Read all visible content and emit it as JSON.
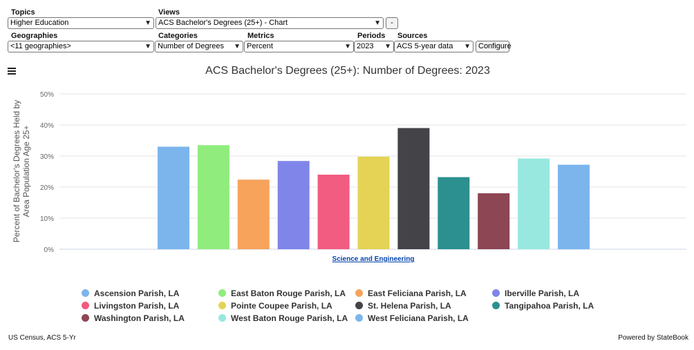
{
  "controls": {
    "topics": {
      "label": "Topics",
      "value": "Higher Education"
    },
    "views": {
      "label": "Views",
      "value": "ACS Bachelor's Degrees (25+) - Chart"
    },
    "minus_button": "-",
    "geographies": {
      "label": "Geographies",
      "value": "<11 geographies>"
    },
    "categories": {
      "label": "Categories",
      "value": "Number of Degrees"
    },
    "metrics": {
      "label": "Metrics",
      "value": "Percent"
    },
    "periods": {
      "label": "Periods",
      "value": "2023"
    },
    "sources": {
      "label": "Sources",
      "value": "ACS 5-year data"
    },
    "configure_button": "Configure"
  },
  "chart_data": {
    "type": "bar",
    "title": "ACS Bachelor's Degrees (25+): Number of Degrees: 2023",
    "ylabel": "Percent of Bachelor's Degrees Held by Area Population Age 25+",
    "ylabel_lines": [
      "Percent of Bachelor's Degrees Held by",
      "Area Population Age 25+"
    ],
    "xlabel": "",
    "categories": [
      "Science and Engineering"
    ],
    "ylim": [
      0,
      50
    ],
    "yticks": [
      0,
      10,
      20,
      30,
      40,
      50
    ],
    "ytick_labels": [
      "0%",
      "10%",
      "20%",
      "30%",
      "40%",
      "50%"
    ],
    "grid": true,
    "legend": "bottom",
    "series": [
      {
        "name": "Ascension Parish, LA",
        "values": [
          33.0
        ],
        "color": "#7cb5ec"
      },
      {
        "name": "East Baton Rouge Parish, LA",
        "values": [
          33.5
        ],
        "color": "#90ed7d"
      },
      {
        "name": "East Feliciana Parish, LA",
        "values": [
          22.4
        ],
        "color": "#f7a35c"
      },
      {
        "name": "Iberville Parish, LA",
        "values": [
          28.4
        ],
        "color": "#8085e9"
      },
      {
        "name": "Livingston Parish, LA",
        "values": [
          24.0
        ],
        "color": "#f15c80"
      },
      {
        "name": "Pointe Coupee Parish, LA",
        "values": [
          29.8
        ],
        "color": "#e4d354"
      },
      {
        "name": "St. Helena Parish, LA",
        "values": [
          39.0
        ],
        "color": "#434348"
      },
      {
        "name": "Tangipahoa Parish, LA",
        "values": [
          23.2
        ],
        "color": "#2b908f"
      },
      {
        "name": "Washington Parish, LA",
        "values": [
          18.0
        ],
        "color": "#8d4654"
      },
      {
        "name": "West Baton Rouge Parish, LA",
        "values": [
          29.2
        ],
        "color": "#98e8e0"
      },
      {
        "name": "West Feliciana Parish, LA",
        "values": [
          27.2
        ],
        "color": "#7cb5ec"
      }
    ]
  },
  "footer": {
    "source": "US Census, ACS 5-Yr",
    "powered_by": "Powered by StateBook"
  }
}
